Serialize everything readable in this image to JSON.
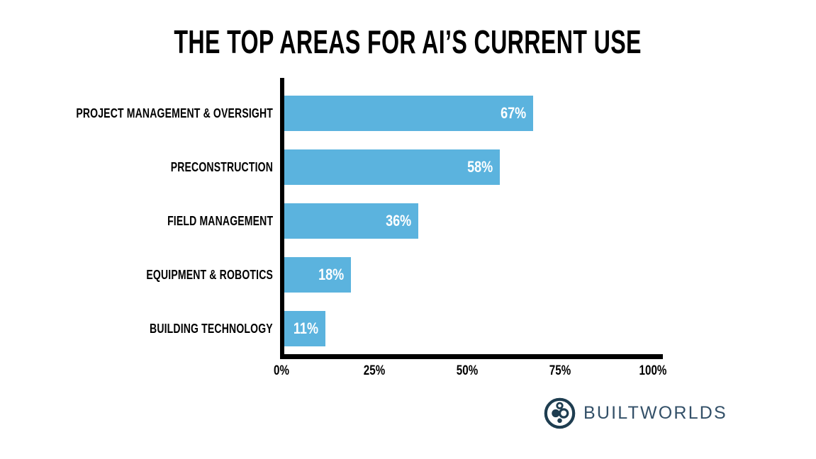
{
  "title": "THE TOP AREAS FOR AI’S CURRENT USE",
  "chart_data": {
    "type": "bar",
    "orientation": "horizontal",
    "title": "THE TOP AREAS FOR AI’S CURRENT USE",
    "categories": [
      "PROJECT MANAGEMENT & OVERSIGHT",
      "PRECONSTRUCTION",
      "FIELD MANAGEMENT",
      "EQUIPMENT & ROBOTICS",
      "BUILDING TECHNOLOGY"
    ],
    "values": [
      67,
      58,
      36,
      18,
      11
    ],
    "value_labels": [
      "67%",
      "58%",
      "36%",
      "18%",
      "11%"
    ],
    "x_ticks": [
      "0%",
      "25%",
      "50%",
      "75%",
      "100%"
    ],
    "xlim": [
      0,
      100
    ],
    "xlabel": "",
    "ylabel": "",
    "grid": false,
    "legend": false,
    "bar_color": "#5BB3DE",
    "value_label_color": "#FFFFFF",
    "axis_color": "#000000",
    "background_color": "#FFFFFF"
  },
  "branding": {
    "logo_text": "BUILTWORLDS",
    "logo_icon": "builtworlds-circles-icon",
    "icon_color": "#1E3D50",
    "text_color": "#335068"
  }
}
